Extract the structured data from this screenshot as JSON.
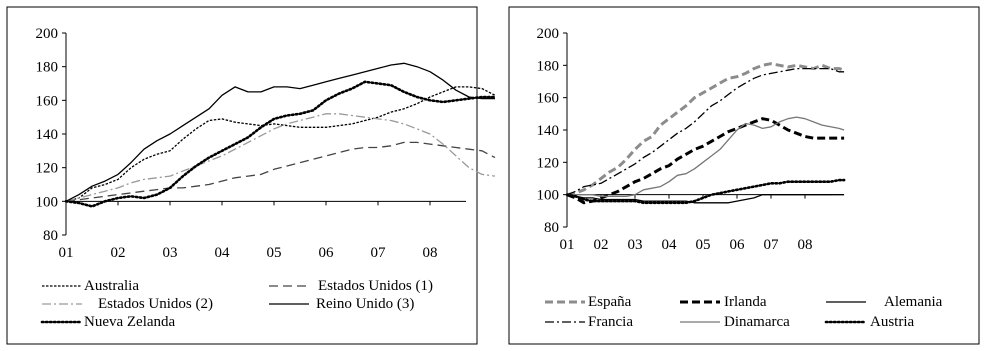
{
  "chart_data": [
    {
      "type": "line",
      "x_ticks": [
        "01",
        "02",
        "03",
        "04",
        "05",
        "06",
        "07",
        "08"
      ],
      "ylim": [
        80,
        200
      ],
      "yticks": [
        80,
        100,
        120,
        140,
        160,
        180,
        200
      ],
      "grid": false,
      "legend_position": "bottom",
      "series": [
        {
          "name": "Australia",
          "color": "#000000",
          "style": "dotted-dash",
          "x": [
            0,
            0.25,
            0.5,
            0.75,
            1.0,
            1.25,
            1.5,
            1.75,
            2.0,
            2.25,
            2.5,
            2.75,
            3.0,
            3.25,
            3.5,
            3.75,
            4.0,
            4.25,
            4.5,
            4.75,
            5.0,
            5.25,
            5.5,
            5.75,
            6.0,
            6.25,
            6.5,
            6.75,
            7.0,
            7.25,
            7.5,
            7.75,
            8.0,
            8.25
          ],
          "values": [
            100,
            102,
            108,
            110,
            113,
            120,
            125,
            128,
            130,
            137,
            143,
            148,
            149,
            147,
            146,
            145,
            146,
            145,
            144,
            144,
            144,
            145,
            146,
            148,
            150,
            153,
            155,
            158,
            162,
            165,
            168,
            168,
            167,
            163
          ]
        },
        {
          "name": "Estados Unidos (1)",
          "color": "#444444",
          "style": "long-dash",
          "x": [
            0,
            0.25,
            0.5,
            0.75,
            1.0,
            1.25,
            1.5,
            1.75,
            2.0,
            2.25,
            2.5,
            2.75,
            3.0,
            3.25,
            3.5,
            3.75,
            4.0,
            4.25,
            4.5,
            4.75,
            5.0,
            5.25,
            5.5,
            5.75,
            6.0,
            6.25,
            6.5,
            6.75,
            7.0,
            7.25,
            7.5,
            7.75,
            8.0,
            8.25
          ],
          "values": [
            100,
            101,
            102,
            103,
            104,
            105,
            106,
            107,
            108,
            108,
            109,
            110,
            112,
            114,
            115,
            116,
            119,
            121,
            123,
            125,
            127,
            129,
            131,
            132,
            132,
            133,
            135,
            135,
            134,
            133,
            132,
            131,
            130,
            126
          ]
        },
        {
          "name": "Estados Unidos (2)",
          "color": "#9a9a9a",
          "style": "dash-dot",
          "x": [
            0,
            0.25,
            0.5,
            0.75,
            1.0,
            1.25,
            1.5,
            1.75,
            2.0,
            2.25,
            2.5,
            2.75,
            3.0,
            3.25,
            3.5,
            3.75,
            4.0,
            4.25,
            4.5,
            4.75,
            5.0,
            5.25,
            5.5,
            5.75,
            6.0,
            6.25,
            6.5,
            6.75,
            7.0,
            7.25,
            7.5,
            7.75,
            8.0,
            8.25
          ],
          "values": [
            100,
            102,
            104,
            106,
            108,
            111,
            113,
            114,
            115,
            118,
            121,
            124,
            127,
            131,
            135,
            139,
            143,
            146,
            148,
            150,
            152,
            152,
            151,
            150,
            149,
            148,
            146,
            143,
            140,
            134,
            127,
            120,
            116,
            115
          ]
        },
        {
          "name": "Reino Unido (3)",
          "color": "#000000",
          "style": "solid",
          "x": [
            0,
            0.25,
            0.5,
            0.75,
            1.0,
            1.25,
            1.5,
            1.75,
            2.0,
            2.25,
            2.5,
            2.75,
            3.0,
            3.25,
            3.5,
            3.75,
            4.0,
            4.25,
            4.5,
            4.75,
            5.0,
            5.25,
            5.5,
            5.75,
            6.0,
            6.25,
            6.5,
            6.75,
            7.0,
            7.25,
            7.5,
            7.75,
            8.0,
            8.25
          ],
          "values": [
            100,
            104,
            109,
            112,
            116,
            123,
            131,
            136,
            140,
            145,
            150,
            155,
            163,
            168,
            165,
            165,
            168,
            168,
            167,
            169,
            171,
            173,
            175,
            177,
            179,
            181,
            182,
            180,
            177,
            172,
            166,
            162,
            161,
            161
          ]
        },
        {
          "name": "Nueva Zelanda",
          "color": "#000000",
          "style": "dotted",
          "x": [
            0,
            0.25,
            0.5,
            0.75,
            1.0,
            1.25,
            1.5,
            1.75,
            2.0,
            2.25,
            2.5,
            2.75,
            3.0,
            3.25,
            3.5,
            3.75,
            4.0,
            4.25,
            4.5,
            4.75,
            5.0,
            5.25,
            5.5,
            5.75,
            6.0,
            6.25,
            6.5,
            6.75,
            7.0,
            7.25,
            7.5,
            7.75,
            8.0,
            8.25
          ],
          "values": [
            100,
            99,
            97,
            100,
            102,
            103,
            102,
            104,
            108,
            115,
            121,
            126,
            130,
            134,
            138,
            144,
            149,
            151,
            152,
            154,
            160,
            164,
            167,
            171,
            170,
            169,
            165,
            162,
            160,
            159,
            160,
            161,
            162,
            162
          ]
        }
      ]
    },
    {
      "type": "line",
      "x_ticks": [
        "01",
        "02",
        "03",
        "04",
        "05",
        "06",
        "07",
        "08"
      ],
      "ylim": [
        80,
        200
      ],
      "yticks": [
        80,
        100,
        120,
        140,
        160,
        180,
        200
      ],
      "grid": false,
      "legend_position": "bottom",
      "series": [
        {
          "name": "España",
          "color": "#8c8c8c",
          "style": "thick-dash",
          "x": [
            0,
            0.25,
            0.5,
            0.75,
            1.0,
            1.25,
            1.5,
            1.75,
            2.0,
            2.25,
            2.5,
            2.75,
            3.0,
            3.25,
            3.5,
            3.75,
            4.0,
            4.25,
            4.5,
            4.75,
            5.0,
            5.25,
            5.5,
            5.75,
            6.0,
            6.25,
            6.5,
            6.75,
            7.0,
            7.25,
            7.5,
            7.75,
            8.0,
            8.15
          ],
          "values": [
            100,
            101,
            103,
            106,
            110,
            114,
            117,
            122,
            128,
            133,
            136,
            143,
            147,
            151,
            155,
            160,
            163,
            166,
            169,
            172,
            173,
            175,
            178,
            180,
            181,
            180,
            179,
            180,
            179,
            178,
            180,
            178,
            178,
            177
          ]
        },
        {
          "name": "Irlanda",
          "color": "#000000",
          "style": "thick-dash",
          "x": [
            0,
            0.25,
            0.5,
            0.75,
            1.0,
            1.25,
            1.5,
            1.75,
            2.0,
            2.25,
            2.5,
            2.75,
            3.0,
            3.25,
            3.5,
            3.75,
            4.0,
            4.25,
            4.5,
            4.75,
            5.0,
            5.25,
            5.5,
            5.75,
            6.0,
            6.25,
            6.5,
            6.75,
            7.0,
            7.25,
            7.5,
            7.75,
            8.0,
            8.15
          ],
          "values": [
            100,
            98,
            95,
            96,
            98,
            100,
            102,
            105,
            108,
            110,
            113,
            116,
            118,
            122,
            125,
            128,
            130,
            133,
            136,
            139,
            141,
            143,
            145,
            147,
            146,
            143,
            140,
            138,
            136,
            135,
            135,
            135,
            135,
            135
          ]
        },
        {
          "name": "Alemania",
          "color": "#000000",
          "style": "solid",
          "x": [
            0,
            0.25,
            0.5,
            0.75,
            1.0,
            1.25,
            1.5,
            1.75,
            2.0,
            2.25,
            2.5,
            2.75,
            3.0,
            3.25,
            3.5,
            3.75,
            4.0,
            4.25,
            4.5,
            4.75,
            5.0,
            5.25,
            5.5,
            5.75,
            6.0,
            6.25,
            6.5,
            6.75,
            7.0,
            7.25,
            7.5,
            7.75,
            8.0,
            8.15
          ],
          "values": [
            100,
            99,
            98,
            98,
            97,
            97,
            97,
            97,
            97,
            96,
            96,
            96,
            96,
            96,
            96,
            95,
            95,
            95,
            95,
            95,
            96,
            97,
            98,
            100,
            100,
            100,
            100,
            100,
            100,
            100,
            100,
            100,
            100,
            100
          ]
        },
        {
          "name": "Francia",
          "color": "#000000",
          "style": "dash-dot",
          "x": [
            0,
            0.25,
            0.5,
            0.75,
            1.0,
            1.25,
            1.5,
            1.75,
            2.0,
            2.25,
            2.5,
            2.75,
            3.0,
            3.25,
            3.5,
            3.75,
            4.0,
            4.25,
            4.5,
            4.75,
            5.0,
            5.25,
            5.5,
            5.75,
            6.0,
            6.25,
            6.5,
            6.75,
            7.0,
            7.25,
            7.5,
            7.75,
            8.0,
            8.15
          ],
          "values": [
            100,
            102,
            105,
            106,
            107,
            110,
            113,
            116,
            119,
            123,
            126,
            130,
            134,
            138,
            141,
            145,
            150,
            155,
            158,
            162,
            166,
            169,
            172,
            174,
            175,
            176,
            177,
            178,
            178,
            178,
            178,
            178,
            176,
            176
          ]
        },
        {
          "name": "Dinamarca",
          "color": "#777777",
          "style": "solid",
          "x": [
            0,
            0.25,
            0.5,
            0.75,
            1.0,
            1.25,
            1.5,
            1.75,
            2.0,
            2.25,
            2.5,
            2.75,
            3.0,
            3.25,
            3.5,
            3.75,
            4.0,
            4.25,
            4.5,
            4.75,
            5.0,
            5.25,
            5.5,
            5.75,
            6.0,
            6.25,
            6.5,
            6.75,
            7.0,
            7.25,
            7.5,
            7.75,
            8.0,
            8.15
          ],
          "values": [
            100,
            100,
            100,
            100,
            99,
            99,
            99,
            99,
            100,
            103,
            104,
            105,
            108,
            112,
            113,
            116,
            120,
            124,
            128,
            134,
            140,
            144,
            143,
            141,
            142,
            145,
            147,
            148,
            147,
            145,
            143,
            142,
            141,
            140
          ]
        },
        {
          "name": "Austria",
          "color": "#000000",
          "style": "dotted",
          "x": [
            0,
            0.25,
            0.5,
            0.75,
            1.0,
            1.25,
            1.5,
            1.75,
            2.0,
            2.25,
            2.5,
            2.75,
            3.0,
            3.25,
            3.5,
            3.75,
            4.0,
            4.25,
            4.5,
            4.75,
            5.0,
            5.25,
            5.5,
            5.75,
            6.0,
            6.25,
            6.5,
            6.75,
            7.0,
            7.25,
            7.5,
            7.75,
            8.0,
            8.15
          ],
          "values": [
            100,
            99,
            97,
            96,
            96,
            96,
            96,
            96,
            96,
            95,
            95,
            95,
            95,
            95,
            95,
            96,
            98,
            100,
            101,
            102,
            103,
            104,
            105,
            106,
            107,
            107,
            108,
            108,
            108,
            108,
            108,
            108,
            109,
            109
          ]
        }
      ]
    }
  ]
}
